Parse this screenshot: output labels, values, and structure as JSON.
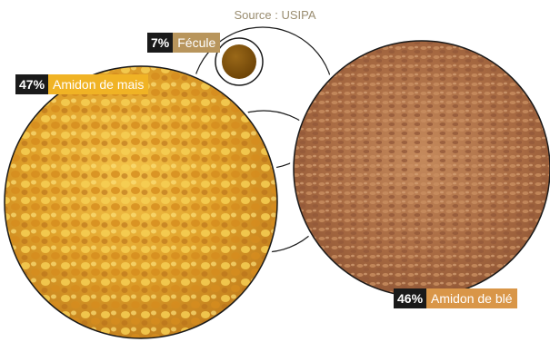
{
  "source": "Source : USIPA",
  "segments": [
    {
      "id": "fecule",
      "percent": "7%",
      "label": "Fécule",
      "value": 7,
      "color": "#b8955c"
    },
    {
      "id": "mais",
      "percent": "47%",
      "label": "Amidon de mais",
      "value": 47,
      "color": "#f0b325"
    },
    {
      "id": "ble",
      "percent": "46%",
      "label": "Amidon de blé",
      "value": 46,
      "color": "#d99648"
    }
  ]
}
